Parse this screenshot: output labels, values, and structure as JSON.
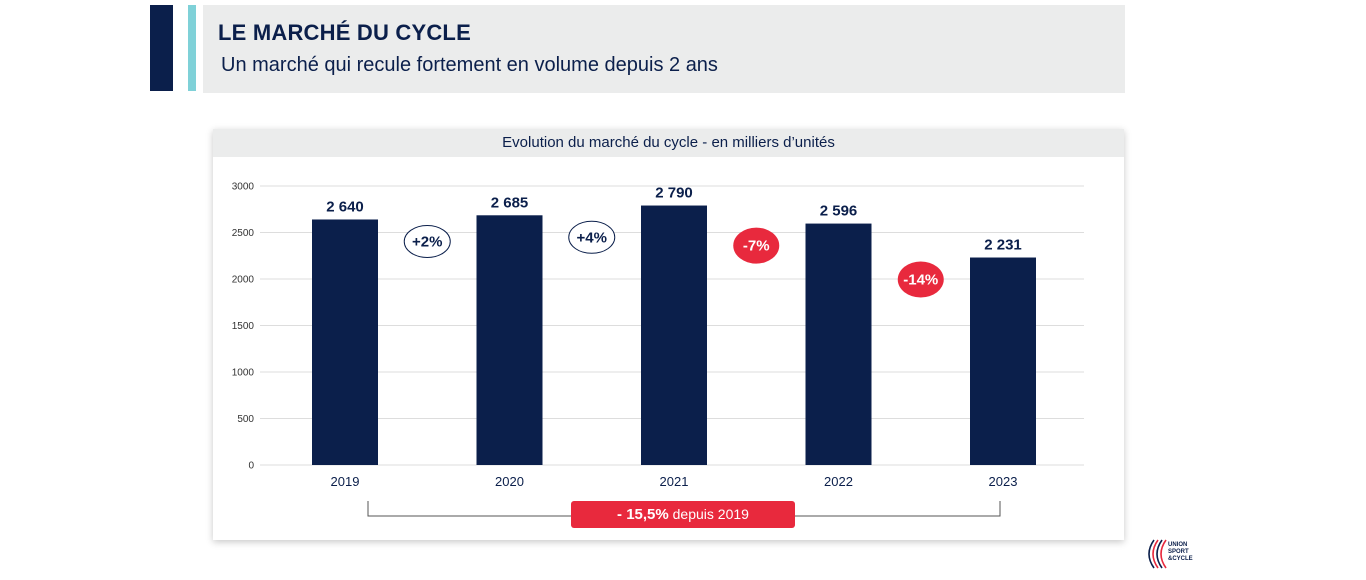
{
  "header": {
    "title": "LE MARCHÉ DU CYCLE",
    "subtitle": "Un marché qui recule fortement en volume depuis 2 ans"
  },
  "chart_data": {
    "type": "bar",
    "title": "Evolution du marché du cycle - en milliers d’unités",
    "categories": [
      "2019",
      "2020",
      "2021",
      "2022",
      "2023"
    ],
    "values": [
      2640,
      2685,
      2790,
      2596,
      2231
    ],
    "value_labels": [
      "2 640",
      "2 685",
      "2 790",
      "2 596",
      "2 231"
    ],
    "ylim": [
      0,
      3000
    ],
    "yticks": [
      0,
      500,
      1000,
      1500,
      2000,
      2500,
      3000
    ],
    "grid": true,
    "bar_color": "#0b1f4b",
    "changes": [
      {
        "label": "+2%",
        "kind": "positive"
      },
      {
        "label": "+4%",
        "kind": "positive"
      },
      {
        "label": "-7%",
        "kind": "negative"
      },
      {
        "label": "-14%",
        "kind": "negative"
      }
    ],
    "summary": {
      "strong": "- 15,5%",
      "rest": " depuis 2019"
    },
    "colors": {
      "navy": "#0b1f4b",
      "red": "#e8293d",
      "grid": "#dddddd"
    }
  },
  "logo": {
    "lines": [
      "UNION",
      "SPORT",
      "&CYCLE"
    ]
  }
}
